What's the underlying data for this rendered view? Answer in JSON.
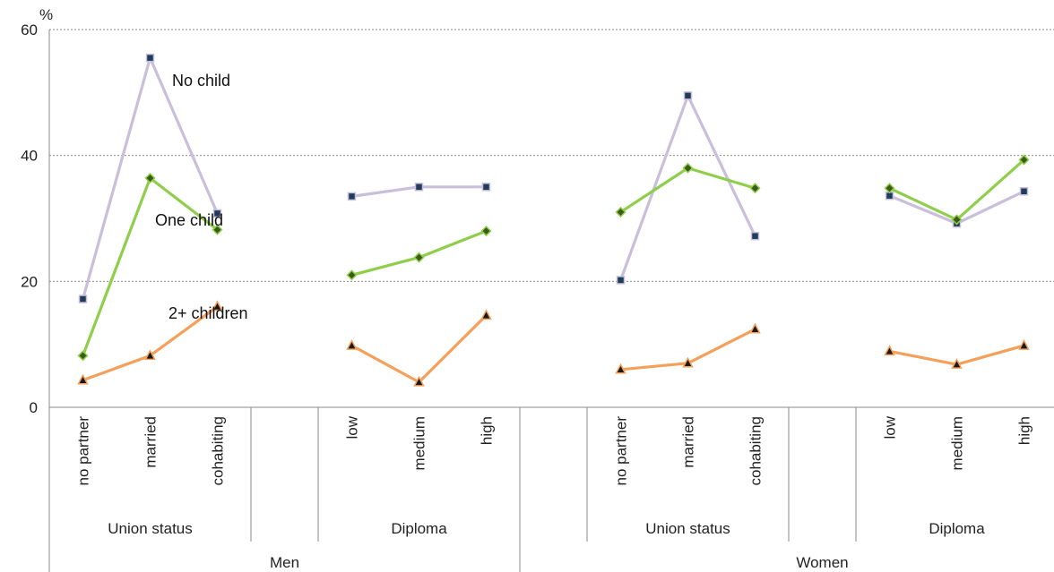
{
  "chart_data": {
    "type": "line",
    "ylabel": "%",
    "ylim": [
      0,
      60
    ],
    "yticks": [
      0,
      20,
      40,
      60
    ],
    "grid": true,
    "legend": "none",
    "groups": [
      {
        "sex": "Men",
        "subgroup": "Union status",
        "categories": [
          "no partner",
          "married",
          "cohabiting"
        ]
      },
      {
        "sex": "Men",
        "subgroup": "Diploma",
        "categories": [
          "low",
          "medium",
          "high"
        ]
      },
      {
        "sex": "Women",
        "subgroup": "Union status",
        "categories": [
          "no partner",
          "married",
          "cohabiting"
        ]
      },
      {
        "sex": "Women",
        "subgroup": "Diploma",
        "categories": [
          "low",
          "medium",
          "high"
        ]
      }
    ],
    "series": [
      {
        "annotation": "No child",
        "color": "#c9bfdb",
        "marker": "square",
        "marker_color": "#1f3c5a",
        "values": [
          [
            17.2,
            55.5,
            30.8
          ],
          [
            33.5,
            35.0,
            35.0
          ],
          [
            20.2,
            49.5,
            27.2
          ],
          [
            33.6,
            29.2,
            34.3
          ]
        ]
      },
      {
        "annotation": "One child",
        "color": "#8fce4a",
        "marker": "diamond",
        "marker_color": "#3d5a1a",
        "values": [
          [
            8.2,
            36.4,
            28.2
          ],
          [
            21.0,
            23.8,
            28.0
          ],
          [
            31.0,
            38.0,
            34.8
          ],
          [
            34.8,
            29.8,
            39.3
          ]
        ]
      },
      {
        "annotation": "2+ children",
        "color": "#f5a05a",
        "marker": "triangle",
        "marker_color": "#1a1a1a",
        "values": [
          [
            4.3,
            8.2,
            16.0
          ],
          [
            9.8,
            4.0,
            14.6
          ],
          [
            6.0,
            7.0,
            12.4
          ],
          [
            8.9,
            6.8,
            9.8
          ]
        ]
      }
    ]
  }
}
